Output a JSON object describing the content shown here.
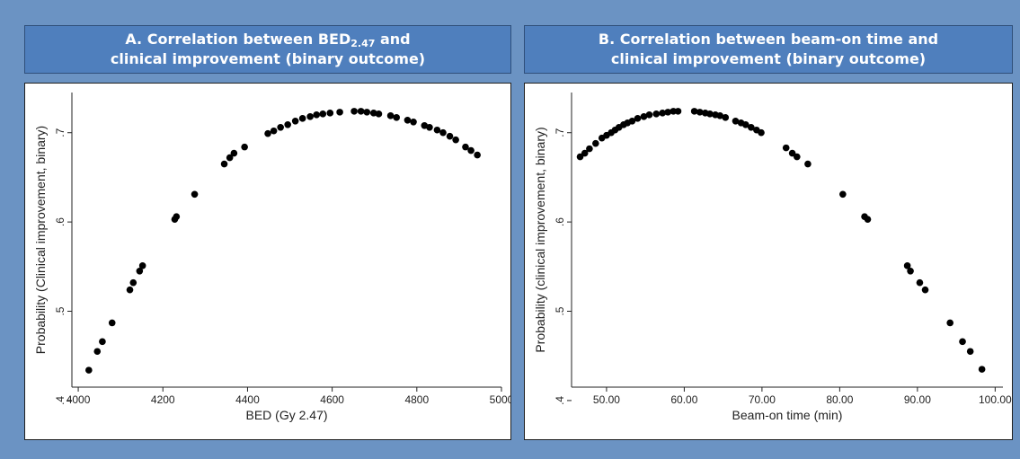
{
  "panels": [
    {
      "title_line1": "A. Correlation between BED",
      "title_sub": "2.47",
      "title_line1_end": " and",
      "title_line2": "clinical improvement (binary outcome)"
    },
    {
      "title_line1": "B. Correlation between beam-on time and",
      "title_line2": "clinical improvement (binary outcome)"
    }
  ],
  "chart_data": [
    {
      "type": "scatter",
      "xlabel": "BED (Gy 2.47)",
      "ylabel": "Probability (Clinical improvement, binary)",
      "xlim": [
        3985,
        5000
      ],
      "ylim": [
        0.415,
        0.745
      ],
      "x_ticks": [
        4000,
        4200,
        4400,
        4600,
        4800,
        5000
      ],
      "x_tick_labels": [
        "4000",
        "4200",
        "4400",
        "4600",
        "4800",
        "5000"
      ],
      "y_ticks": [
        0.4,
        0.5,
        0.6,
        0.7
      ],
      "y_tick_labels": [
        ".4",
        ".5",
        ".6",
        ".7"
      ],
      "marker_color": "#000000",
      "points": [
        [
          4025,
          0.434
        ],
        [
          4045,
          0.455
        ],
        [
          4057,
          0.466
        ],
        [
          4080,
          0.487
        ],
        [
          4122,
          0.524
        ],
        [
          4130,
          0.532
        ],
        [
          4145,
          0.545
        ],
        [
          4152,
          0.551
        ],
        [
          4228,
          0.603
        ],
        [
          4232,
          0.606
        ],
        [
          4275,
          0.631
        ],
        [
          4345,
          0.665
        ],
        [
          4358,
          0.672
        ],
        [
          4368,
          0.677
        ],
        [
          4393,
          0.684
        ],
        [
          4448,
          0.699
        ],
        [
          4462,
          0.702
        ],
        [
          4478,
          0.706
        ],
        [
          4495,
          0.709
        ],
        [
          4513,
          0.713
        ],
        [
          4530,
          0.716
        ],
        [
          4548,
          0.718
        ],
        [
          4563,
          0.72
        ],
        [
          4578,
          0.721
        ],
        [
          4595,
          0.722
        ],
        [
          4618,
          0.723
        ],
        [
          4652,
          0.724
        ],
        [
          4668,
          0.724
        ],
        [
          4682,
          0.723
        ],
        [
          4698,
          0.722
        ],
        [
          4710,
          0.721
        ],
        [
          4738,
          0.719
        ],
        [
          4752,
          0.717
        ],
        [
          4778,
          0.714
        ],
        [
          4792,
          0.712
        ],
        [
          4818,
          0.708
        ],
        [
          4830,
          0.706
        ],
        [
          4848,
          0.703
        ],
        [
          4862,
          0.7
        ],
        [
          4878,
          0.696
        ],
        [
          4892,
          0.692
        ],
        [
          4915,
          0.684
        ],
        [
          4928,
          0.68
        ],
        [
          4943,
          0.675
        ]
      ]
    },
    {
      "type": "scatter",
      "xlabel": "Beam-on time (min)",
      "ylabel": "Probability (clinical improvement, binary)",
      "xlim": [
        45.5,
        101
      ],
      "ylim": [
        0.415,
        0.745
      ],
      "x_ticks": [
        50,
        60,
        70,
        80,
        90,
        100
      ],
      "x_tick_labels": [
        "50.00",
        "60.00",
        "70.00",
        "80.00",
        "90.00",
        "100.00"
      ],
      "y_ticks": [
        0.4,
        0.5,
        0.6,
        0.7
      ],
      "y_tick_labels": [
        ".4",
        ".5",
        ".6",
        ".7"
      ],
      "marker_color": "#000000",
      "points": [
        [
          46.6,
          0.673
        ],
        [
          47.2,
          0.677
        ],
        [
          47.8,
          0.682
        ],
        [
          48.6,
          0.688
        ],
        [
          49.4,
          0.694
        ],
        [
          50.0,
          0.697
        ],
        [
          50.6,
          0.7
        ],
        [
          51.1,
          0.703
        ],
        [
          51.6,
          0.706
        ],
        [
          52.2,
          0.709
        ],
        [
          52.7,
          0.711
        ],
        [
          53.3,
          0.713
        ],
        [
          54.0,
          0.716
        ],
        [
          54.8,
          0.718
        ],
        [
          55.5,
          0.72
        ],
        [
          56.4,
          0.721
        ],
        [
          57.2,
          0.722
        ],
        [
          57.9,
          0.723
        ],
        [
          58.6,
          0.724
        ],
        [
          59.2,
          0.724
        ],
        [
          61.3,
          0.724
        ],
        [
          62.0,
          0.723
        ],
        [
          62.7,
          0.722
        ],
        [
          63.3,
          0.721
        ],
        [
          64.0,
          0.72
        ],
        [
          64.6,
          0.719
        ],
        [
          65.3,
          0.717
        ],
        [
          66.6,
          0.713
        ],
        [
          67.3,
          0.711
        ],
        [
          67.9,
          0.709
        ],
        [
          68.6,
          0.706
        ],
        [
          69.3,
          0.703
        ],
        [
          69.9,
          0.7
        ],
        [
          73.1,
          0.683
        ],
        [
          73.9,
          0.677
        ],
        [
          74.5,
          0.673
        ],
        [
          75.9,
          0.665
        ],
        [
          80.4,
          0.631
        ],
        [
          83.2,
          0.606
        ],
        [
          83.6,
          0.603
        ],
        [
          88.7,
          0.551
        ],
        [
          89.1,
          0.545
        ],
        [
          90.3,
          0.532
        ],
        [
          91.0,
          0.524
        ],
        [
          94.2,
          0.487
        ],
        [
          95.8,
          0.466
        ],
        [
          96.8,
          0.455
        ],
        [
          98.3,
          0.435
        ]
      ]
    }
  ]
}
